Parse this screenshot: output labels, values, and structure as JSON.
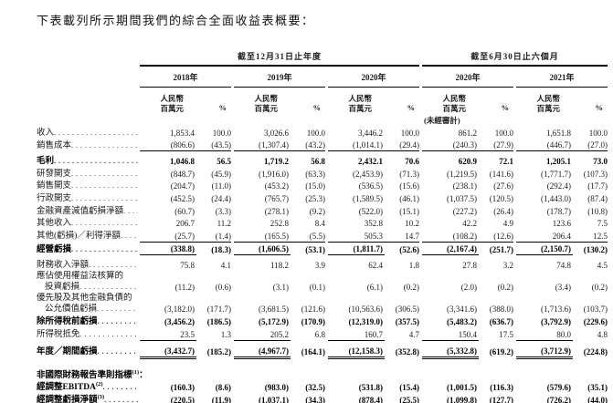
{
  "page": {
    "title": "下表載列所示期間我們的綜合全面收益表概要："
  },
  "table": {
    "periods": [
      {
        "label": "截至12月31日止年度"
      },
      {
        "label": "截至6月30日止六個月"
      }
    ],
    "years": [
      "2018年",
      "2019年",
      "2020年",
      "2020年",
      "2021年"
    ],
    "units": {
      "money_l1": "人民幣",
      "money_l2": "百萬元",
      "pct": "%",
      "unaudited": "(未經審計)"
    },
    "rows": [
      {
        "label": "收入",
        "bold": false,
        "rule": "none",
        "values": [
          "1,853.4",
          "100.0",
          "3,026.6",
          "100.0",
          "3,446.2",
          "100.0",
          "861.2",
          "100.0",
          "1,651.8",
          "100.0"
        ]
      },
      {
        "label": "銷售成本",
        "bold": false,
        "rule": "group",
        "values": [
          "(806.6)",
          "(43.5)",
          "(1,307.4)",
          "(43.2)",
          "(1,014.1)",
          "(29.4)",
          "(240.3)",
          "(27.9)",
          "(446.7)",
          "(27.0)"
        ]
      },
      {
        "label": "毛利",
        "bold": true,
        "rule": "none",
        "cls": "gt",
        "values": [
          "1,046.8",
          "56.5",
          "1,719.2",
          "56.8",
          "2,432.1",
          "70.6",
          "620.9",
          "72.1",
          "1,205.1",
          "73.0"
        ]
      },
      {
        "label": "研發開支",
        "bold": false,
        "rule": "none",
        "values": [
          "(848.7)",
          "(45.9)",
          "(1,916.0)",
          "(63.3)",
          "(2,453.9)",
          "(71.3)",
          "(1,219.5)",
          "(141.6)",
          "(1,771.7)",
          "(107.3)"
        ]
      },
      {
        "label": "銷售開支",
        "bold": false,
        "rule": "none",
        "values": [
          "(204.7)",
          "(11.0)",
          "(453.2)",
          "(15.0)",
          "(536.5)",
          "(15.6)",
          "(238.1)",
          "(27.6)",
          "(292.4)",
          "(17.7)"
        ]
      },
      {
        "label": "行政開支",
        "bold": false,
        "rule": "none",
        "values": [
          "(452.5)",
          "(24.4)",
          "(765.7)",
          "(25.3)",
          "(1,589.5)",
          "(46.1)",
          "(1,037.5)",
          "(120.5)",
          "(1,443.0)",
          "(87.4)"
        ]
      },
      {
        "label": "金融資產減值虧損淨額",
        "bold": false,
        "rule": "none",
        "values": [
          "(60.7)",
          "(3.3)",
          "(278.1)",
          "(9.2)",
          "(522.0)",
          "(15.1)",
          "(227.2)",
          "(26.4)",
          "(178.7)",
          "(10.8)"
        ]
      },
      {
        "label": "其他收入",
        "bold": false,
        "rule": "none",
        "values": [
          "206.7",
          "11.2",
          "252.8",
          "8.4",
          "352.8",
          "10.2",
          "42.2",
          "4.9",
          "123.6",
          "7.5"
        ]
      },
      {
        "label": "其他(虧損)／利得淨額",
        "bold": false,
        "rule": "group",
        "values": [
          "(25.7)",
          "(1.4)",
          "(165.5)",
          "(5.5)",
          "505.3",
          "14.7",
          "(108.2)",
          "(12.6)",
          "206.4",
          "12.5"
        ]
      },
      {
        "label": "經營虧損",
        "bold": true,
        "rule": "money",
        "values": [
          "(338.8)",
          "(18.3)",
          "(1,606.5)",
          "(53.1)",
          "(1,811.7)",
          "(52.6)",
          "(2,167.4)",
          "(251.7)",
          "(2,150.7)",
          "(130.2)"
        ]
      },
      {
        "label": "財務收入淨額",
        "bold": false,
        "rule": "none",
        "cls": "gt",
        "values": [
          "75.8",
          "4.1",
          "118.2",
          "3.9",
          "62.4",
          "1.8",
          "27.8",
          "3.2",
          "74.8",
          "4.5"
        ]
      },
      {
        "label_lines": [
          "應佔使用權益法核算的",
          "投資虧損"
        ],
        "bold": false,
        "rule": "none",
        "cls": "two",
        "values": [
          "(11.2)",
          "(0.6)",
          "(3.1)",
          "(0.1)",
          "(6.1)",
          "(0.2)",
          "(2.0)",
          "(0.2)",
          "(3.4)",
          "(0.2)"
        ]
      },
      {
        "label_lines": [
          "優先股及其他金融負債的",
          "公允價值虧損"
        ],
        "bold": false,
        "rule": "none",
        "cls": "two",
        "values": [
          "(3,182.0)",
          "(171.7)",
          "(3,681.5)",
          "(121.6)",
          "(10,563.6)",
          "(306.5)",
          "(3,341.6)",
          "(388.0)",
          "(1,713.6)",
          "(103.7)"
        ]
      },
      {
        "label": "除所得稅前虧損",
        "bold": true,
        "rule": "none",
        "values": [
          "(3,456.2)",
          "(186.5)",
          "(5,172.9)",
          "(170.9)",
          "(12,319.0)",
          "(357.5)",
          "(5,483.2)",
          "(636.7)",
          "(3,792.9)",
          "(229.6)"
        ]
      },
      {
        "label": "所得稅抵免",
        "bold": false,
        "rule": "money",
        "values": [
          "23.5",
          "1.3",
          "205.2",
          "6.8",
          "160.7",
          "4.7",
          "150.4",
          "17.5",
          "80.0",
          "4.8"
        ]
      },
      {
        "label": "年度／期間虧損",
        "bold": true,
        "rule": "money-double",
        "cls": "gt",
        "values": [
          "(3,432.7)",
          "(185.2)",
          "(4,967.7)",
          "(164.1)",
          "(12,158.3)",
          "(352.8)",
          "(5,332.8)",
          "(619.2)",
          "(3,712.9)",
          "(224.8)"
        ]
      },
      {
        "type": "section",
        "label": "非國際財務報告準則指標",
        "sup": "(1)",
        "suffix": "：",
        "bold": true
      },
      {
        "label": "經調整EBITDA",
        "sup": "(2)",
        "bold": true,
        "rule": "none",
        "values": [
          "(160.3)",
          "(8.6)",
          "(983.0)",
          "(32.5)",
          "(531.8)",
          "(15.4)",
          "(1,001.5)",
          "(116.3)",
          "(579.6)",
          "(35.1)"
        ]
      },
      {
        "label": "經調整虧損淨額",
        "sup": "(3)",
        "bold": true,
        "rule": "none",
        "values": [
          "(220.5)",
          "(11.9)",
          "(1,037.1)",
          "(34.3)",
          "(878.4)",
          "(25.5)",
          "(1,099.8)",
          "(127.7)",
          "(726.2)",
          "(44.0)"
        ]
      }
    ]
  }
}
